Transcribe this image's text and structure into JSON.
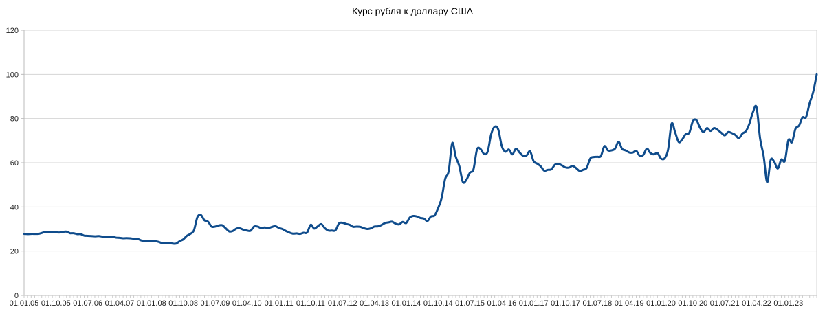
{
  "chart_data": {
    "type": "line",
    "title": "Курс рубля к доллару США",
    "xlabel": "",
    "ylabel": "",
    "ylim": [
      0,
      120
    ],
    "y_ticks": [
      0,
      20,
      40,
      60,
      80,
      100,
      120
    ],
    "grid": true,
    "legend": "none",
    "line_color": "#0f4c8c",
    "x_tick_labels": [
      "01.01.05",
      "01.10.05",
      "01.07.06",
      "01.04.07",
      "01.01.08",
      "01.10.08",
      "01.07.09",
      "01.04.10",
      "01.01.11",
      "01.10.11",
      "01.07.12",
      "01.04.13",
      "01.01.14",
      "01.10.14",
      "01.07.15",
      "01.04.16",
      "01.01.17",
      "01.10.17",
      "01.07.18",
      "01.04.19",
      "01.01.20",
      "01.10.20",
      "01.07.21",
      "01.04.22",
      "01.01.23"
    ],
    "series": [
      {
        "values": [
          27.8,
          27.7,
          27.8,
          27.8,
          27.8,
          28.2,
          28.7,
          28.6,
          28.5,
          28.5,
          28.4,
          28.7,
          28.8,
          28.1,
          28.1,
          27.7,
          27.7,
          27.0,
          26.9,
          26.8,
          26.7,
          26.8,
          26.6,
          26.3,
          26.3,
          26.5,
          26.1,
          26.0,
          25.8,
          25.9,
          25.8,
          25.6,
          25.6,
          24.9,
          24.6,
          24.4,
          24.5,
          24.5,
          24.2,
          23.6,
          23.7,
          23.7,
          23.4,
          23.4,
          24.5,
          25.3,
          26.9,
          27.8,
          29.4,
          35.4,
          36.3,
          33.9,
          33.3,
          31.1,
          31.1,
          31.6,
          31.7,
          30.3,
          28.9,
          29.1,
          30.2,
          30.3,
          29.7,
          29.3,
          29.2,
          31.1,
          31.1,
          30.4,
          30.7,
          30.4,
          30.9,
          31.3,
          30.5,
          30.0,
          29.1,
          28.4,
          27.9,
          28.0,
          27.8,
          28.3,
          28.4,
          31.9,
          30.2,
          31.2,
          32.2,
          30.4,
          29.3,
          29.3,
          29.4,
          32.5,
          32.8,
          32.3,
          31.9,
          31.0,
          31.1,
          31.0,
          30.4,
          30.0,
          30.3,
          31.1,
          31.2,
          31.8,
          32.7,
          33.0,
          33.3,
          32.4,
          32.1,
          33.2,
          32.7,
          35.2,
          35.9,
          35.7,
          35.0,
          34.7,
          33.6,
          35.7,
          36.1,
          39.4,
          44.0,
          52.7,
          56.2,
          68.9,
          62.7,
          58.5,
          51.3,
          52.3,
          55.5,
          57.0,
          66.0,
          66.2,
          64.0,
          65.0,
          72.9,
          76.3,
          75.1,
          67.6,
          65.0,
          66.0,
          63.8,
          66.4,
          64.7,
          63.2,
          63.3,
          65.2,
          60.7,
          59.6,
          58.4,
          56.4,
          56.8,
          57.0,
          59.1,
          59.5,
          58.8,
          57.9,
          57.8,
          58.6,
          57.6,
          56.3,
          56.8,
          57.7,
          61.9,
          62.6,
          62.7,
          63.0,
          67.5,
          65.6,
          65.6,
          66.4,
          69.5,
          66.3,
          65.6,
          64.7,
          64.6,
          65.4,
          63.1,
          63.6,
          66.4,
          64.4,
          63.8,
          64.4,
          61.9,
          62.0,
          66.0,
          77.7,
          73.7,
          69.4,
          70.6,
          73.0,
          73.6,
          78.8,
          79.3,
          75.9,
          73.9,
          75.7,
          74.4,
          75.7,
          74.9,
          73.6,
          72.4,
          73.9,
          73.4,
          72.6,
          71.1,
          73.2,
          74.3,
          77.8,
          83.0,
          85.1,
          71.0,
          63.0,
          51.2,
          61.3,
          60.4,
          57.4,
          61.5,
          60.9,
          70.3,
          69.3,
          75.4,
          76.8,
          80.5,
          80.7,
          87.0,
          92.0,
          100.0
        ]
      }
    ]
  }
}
